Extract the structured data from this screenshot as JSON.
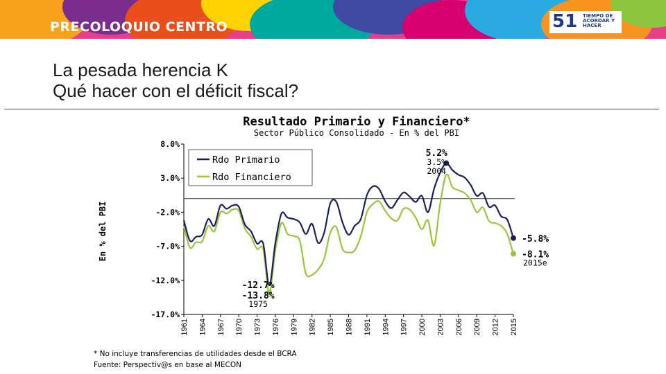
{
  "header": {
    "brand": "PRECOLOQUIO CENTRO",
    "logo_number": "51",
    "logo_text": "TIEMPO DE ACORDAR Y HACER"
  },
  "slide": {
    "title_line1": "La pesada herencia K",
    "title_line2": "Qué hacer con el déficit fiscal?"
  },
  "chart_data": {
    "type": "line",
    "title": "Resultado Primario y Financiero*",
    "subtitle": "Sector Público Consolidado - En % del PBI",
    "ylabel": "En % del PBI",
    "xlabel": "",
    "ylim": [
      -17,
      8
    ],
    "yticks": [
      8,
      3,
      -2,
      -7,
      -12,
      -17
    ],
    "ytick_labels": [
      "8.0%",
      "3.0%",
      "-2.0%",
      "-7.0%",
      "-12.0%",
      "-17.0%"
    ],
    "xlim": [
      1961,
      2015
    ],
    "xticks": [
      1961,
      1964,
      1967,
      1970,
      1973,
      1976,
      1979,
      1982,
      1985,
      1988,
      1991,
      1994,
      1997,
      2000,
      2003,
      2006,
      2009,
      2012,
      2015
    ],
    "zero_line": 0,
    "grid": false,
    "legend_position": "top-left",
    "series": [
      {
        "name": "Rdo Primario",
        "color": "#1a1f5e",
        "x": [
          1961,
          1962,
          1963,
          1964,
          1965,
          1966,
          1967,
          1968,
          1969,
          1970,
          1971,
          1972,
          1973,
          1974,
          1975,
          1976,
          1977,
          1978,
          1979,
          1980,
          1981,
          1982,
          1983,
          1984,
          1985,
          1986,
          1987,
          1988,
          1989,
          1990,
          1991,
          1992,
          1993,
          1994,
          1995,
          1996,
          1997,
          1998,
          1999,
          2000,
          2001,
          2002,
          2003,
          2004,
          2005,
          2006,
          2007,
          2008,
          2009,
          2010,
          2011,
          2012,
          2013,
          2014,
          2015
        ],
        "y": [
          -3.2,
          -6.2,
          -5.6,
          -5.3,
          -3.0,
          -4.0,
          -1.0,
          -1.5,
          -1.0,
          -1.2,
          -3.8,
          -4.8,
          -6.6,
          -6.6,
          -12.7,
          -6.5,
          -2.2,
          -2.8,
          -3.0,
          -3.5,
          -5.2,
          -3.7,
          -6.5,
          -5.0,
          -0.7,
          -0.5,
          -3.5,
          -5.3,
          -4.0,
          -3.0,
          0.5,
          1.8,
          1.4,
          -0.4,
          -1.4,
          -0.2,
          0.9,
          0.3,
          -0.5,
          0.4,
          -2.0,
          1.4,
          3.8,
          5.2,
          4.2,
          3.5,
          3.1,
          2.0,
          0.4,
          0.8,
          -1.2,
          -1.0,
          -2.6,
          -3.1,
          -5.8
        ]
      },
      {
        "name": "Rdo Financiero",
        "color": "#9ac53a",
        "x": [
          1961,
          1962,
          1963,
          1964,
          1965,
          1966,
          1967,
          1968,
          1969,
          1970,
          1971,
          1972,
          1973,
          1974,
          1975,
          1976,
          1977,
          1978,
          1979,
          1980,
          1981,
          1982,
          1983,
          1984,
          1985,
          1986,
          1987,
          1988,
          1989,
          1990,
          1991,
          1992,
          1993,
          1994,
          1995,
          1996,
          1997,
          1998,
          1999,
          2000,
          2001,
          2002,
          2003,
          2004,
          2005,
          2006,
          2007,
          2008,
          2009,
          2010,
          2011,
          2012,
          2013,
          2014,
          2015
        ],
        "y": [
          -4.0,
          -7.2,
          -6.4,
          -6.3,
          -4.0,
          -4.8,
          -2.0,
          -2.2,
          -1.6,
          -1.8,
          -4.4,
          -5.6,
          -7.4,
          -7.4,
          -13.8,
          -7.6,
          -3.6,
          -5.2,
          -5.5,
          -6.2,
          -11.0,
          -11.2,
          -10.4,
          -8.8,
          -5.0,
          -4.2,
          -7.4,
          -7.9,
          -7.6,
          -5.5,
          -2.0,
          -0.8,
          -0.4,
          -1.8,
          -2.9,
          -3.2,
          -1.5,
          -1.6,
          -2.8,
          -4.5,
          -3.2,
          -6.9,
          -0.8,
          3.5,
          1.7,
          1.2,
          0.8,
          -0.2,
          -2.0,
          -1.3,
          -3.3,
          -3.6,
          -4.0,
          -5.2,
          -8.1
        ]
      }
    ],
    "annotations": [
      {
        "x": 2004,
        "y": 5.2,
        "series": 0,
        "lines": [
          "5.2%",
          "3.5%",
          "2004"
        ],
        "bold": [
          true,
          false,
          false
        ],
        "side": "above"
      },
      {
        "x": 1975,
        "y": -13.8,
        "series": 1,
        "lines": [
          "-12.7%",
          "-13.8%",
          "1975"
        ],
        "bold": [
          true,
          true,
          false
        ],
        "side": "left"
      },
      {
        "x": 2015,
        "y": -5.8,
        "series": 0,
        "lines": [
          "-5.8%"
        ],
        "bold": [
          true
        ],
        "side": "right"
      },
      {
        "x": 2015,
        "y": -8.1,
        "series": 1,
        "lines": [
          "-8.1%",
          "2015e"
        ],
        "bold": [
          true,
          false
        ],
        "side": "right"
      }
    ]
  },
  "footnote": {
    "line1": "* No incluye transferencias de utilidades desde el BCRA",
    "line2": "Fuente: Perspectiv@s en base al MECON"
  }
}
